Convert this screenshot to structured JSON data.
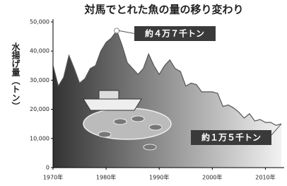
{
  "chart_data": {
    "type": "area",
    "title": "対馬でとれた魚の量の移り変わり",
    "y_label": "水揚げ量（トン）",
    "x": [
      1970,
      1971,
      1972,
      1973,
      1974,
      1975,
      1976,
      1977,
      1978,
      1979,
      1980,
      1981,
      1982,
      1983,
      1984,
      1985,
      1986,
      1987,
      1988,
      1989,
      1990,
      1991,
      1992,
      1993,
      1994,
      1995,
      1996,
      1997,
      1998,
      1999,
      2000,
      2001,
      2002,
      2003,
      2004,
      2005,
      2006,
      2007,
      2008,
      2009,
      2010,
      2011,
      2012,
      2013
    ],
    "values": [
      35000,
      28000,
      31000,
      38500,
      34000,
      29000,
      30500,
      34000,
      35000,
      40000,
      43000,
      44500,
      47000,
      42000,
      36000,
      34000,
      32000,
      34000,
      39000,
      35000,
      32000,
      35000,
      37000,
      34000,
      33000,
      28000,
      29000,
      28500,
      26000,
      26000,
      26000,
      25500,
      21000,
      21500,
      20500,
      19000,
      17000,
      18500,
      16000,
      16500,
      15500,
      15500,
      14500,
      15000
    ],
    "color": "#555555",
    "xlim": [
      1970,
      2013
    ],
    "xticks": [
      {
        "value": 1970,
        "label": "1970年"
      },
      {
        "value": 1980,
        "label": "1980年"
      },
      {
        "value": 1990,
        "label": "1990年"
      },
      {
        "value": 2000,
        "label": "2000年"
      },
      {
        "value": 2010,
        "label": "2010年"
      }
    ],
    "ylim": [
      0,
      50000
    ],
    "yticks": [
      0,
      {
        "value": 10000,
        "label": "10,000"
      },
      {
        "value": 20000,
        "label": "20,000"
      },
      {
        "value": 30000,
        "label": "30,000"
      },
      {
        "value": 40000,
        "label": "40,000"
      },
      {
        "value": 50000,
        "label": "50,000"
      }
    ],
    "annotations": [
      "約４万７千トン",
      "約１万５千トン"
    ]
  }
}
